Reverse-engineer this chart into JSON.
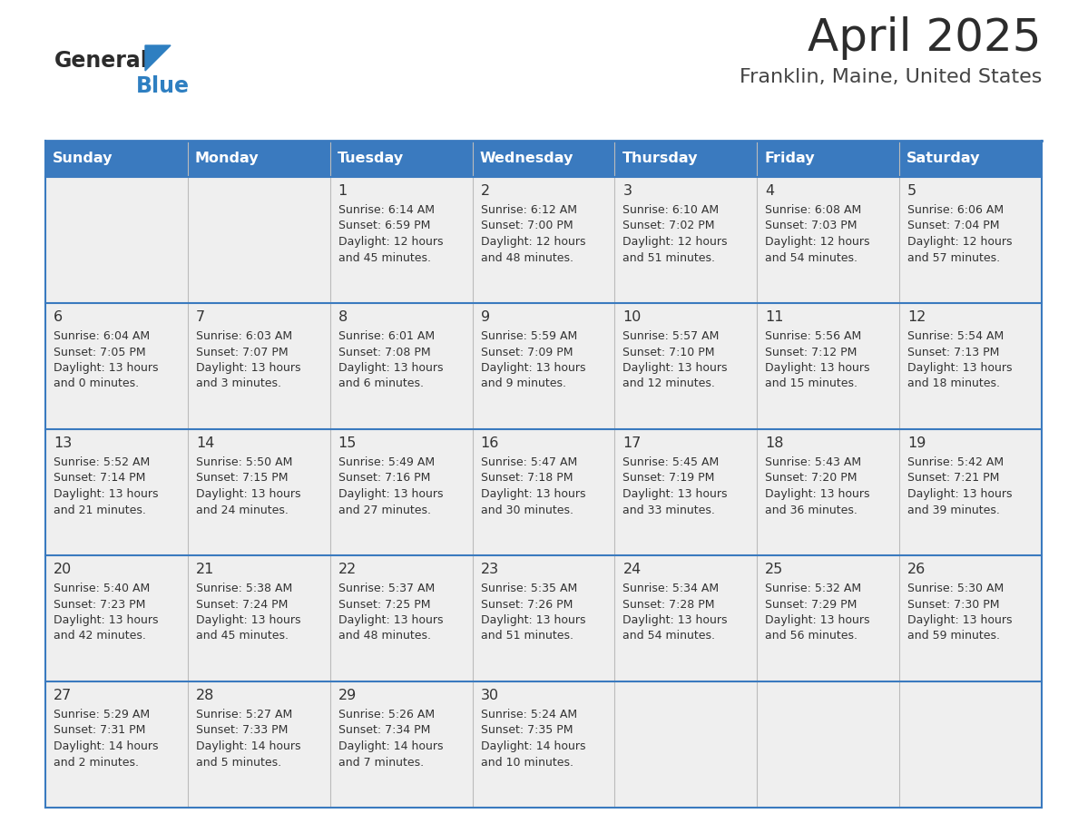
{
  "title": "April 2025",
  "subtitle": "Franklin, Maine, United States",
  "header_bg": "#3a7abf",
  "header_text_color": "#ffffff",
  "cell_bg_light": "#efefef",
  "text_color": "#333333",
  "line_color": "#3a7abf",
  "day_names": [
    "Sunday",
    "Monday",
    "Tuesday",
    "Wednesday",
    "Thursday",
    "Friday",
    "Saturday"
  ],
  "days": [
    {
      "day": 1,
      "col": 2,
      "row": 0,
      "sunrise": "6:14 AM",
      "sunset": "6:59 PM",
      "daylight_hours": 12,
      "daylight_minutes": 45
    },
    {
      "day": 2,
      "col": 3,
      "row": 0,
      "sunrise": "6:12 AM",
      "sunset": "7:00 PM",
      "daylight_hours": 12,
      "daylight_minutes": 48
    },
    {
      "day": 3,
      "col": 4,
      "row": 0,
      "sunrise": "6:10 AM",
      "sunset": "7:02 PM",
      "daylight_hours": 12,
      "daylight_minutes": 51
    },
    {
      "day": 4,
      "col": 5,
      "row": 0,
      "sunrise": "6:08 AM",
      "sunset": "7:03 PM",
      "daylight_hours": 12,
      "daylight_minutes": 54
    },
    {
      "day": 5,
      "col": 6,
      "row": 0,
      "sunrise": "6:06 AM",
      "sunset": "7:04 PM",
      "daylight_hours": 12,
      "daylight_minutes": 57
    },
    {
      "day": 6,
      "col": 0,
      "row": 1,
      "sunrise": "6:04 AM",
      "sunset": "7:05 PM",
      "daylight_hours": 13,
      "daylight_minutes": 0
    },
    {
      "day": 7,
      "col": 1,
      "row": 1,
      "sunrise": "6:03 AM",
      "sunset": "7:07 PM",
      "daylight_hours": 13,
      "daylight_minutes": 3
    },
    {
      "day": 8,
      "col": 2,
      "row": 1,
      "sunrise": "6:01 AM",
      "sunset": "7:08 PM",
      "daylight_hours": 13,
      "daylight_minutes": 6
    },
    {
      "day": 9,
      "col": 3,
      "row": 1,
      "sunrise": "5:59 AM",
      "sunset": "7:09 PM",
      "daylight_hours": 13,
      "daylight_minutes": 9
    },
    {
      "day": 10,
      "col": 4,
      "row": 1,
      "sunrise": "5:57 AM",
      "sunset": "7:10 PM",
      "daylight_hours": 13,
      "daylight_minutes": 12
    },
    {
      "day": 11,
      "col": 5,
      "row": 1,
      "sunrise": "5:56 AM",
      "sunset": "7:12 PM",
      "daylight_hours": 13,
      "daylight_minutes": 15
    },
    {
      "day": 12,
      "col": 6,
      "row": 1,
      "sunrise": "5:54 AM",
      "sunset": "7:13 PM",
      "daylight_hours": 13,
      "daylight_minutes": 18
    },
    {
      "day": 13,
      "col": 0,
      "row": 2,
      "sunrise": "5:52 AM",
      "sunset": "7:14 PM",
      "daylight_hours": 13,
      "daylight_minutes": 21
    },
    {
      "day": 14,
      "col": 1,
      "row": 2,
      "sunrise": "5:50 AM",
      "sunset": "7:15 PM",
      "daylight_hours": 13,
      "daylight_minutes": 24
    },
    {
      "day": 15,
      "col": 2,
      "row": 2,
      "sunrise": "5:49 AM",
      "sunset": "7:16 PM",
      "daylight_hours": 13,
      "daylight_minutes": 27
    },
    {
      "day": 16,
      "col": 3,
      "row": 2,
      "sunrise": "5:47 AM",
      "sunset": "7:18 PM",
      "daylight_hours": 13,
      "daylight_minutes": 30
    },
    {
      "day": 17,
      "col": 4,
      "row": 2,
      "sunrise": "5:45 AM",
      "sunset": "7:19 PM",
      "daylight_hours": 13,
      "daylight_minutes": 33
    },
    {
      "day": 18,
      "col": 5,
      "row": 2,
      "sunrise": "5:43 AM",
      "sunset": "7:20 PM",
      "daylight_hours": 13,
      "daylight_minutes": 36
    },
    {
      "day": 19,
      "col": 6,
      "row": 2,
      "sunrise": "5:42 AM",
      "sunset": "7:21 PM",
      "daylight_hours": 13,
      "daylight_minutes": 39
    },
    {
      "day": 20,
      "col": 0,
      "row": 3,
      "sunrise": "5:40 AM",
      "sunset": "7:23 PM",
      "daylight_hours": 13,
      "daylight_minutes": 42
    },
    {
      "day": 21,
      "col": 1,
      "row": 3,
      "sunrise": "5:38 AM",
      "sunset": "7:24 PM",
      "daylight_hours": 13,
      "daylight_minutes": 45
    },
    {
      "day": 22,
      "col": 2,
      "row": 3,
      "sunrise": "5:37 AM",
      "sunset": "7:25 PM",
      "daylight_hours": 13,
      "daylight_minutes": 48
    },
    {
      "day": 23,
      "col": 3,
      "row": 3,
      "sunrise": "5:35 AM",
      "sunset": "7:26 PM",
      "daylight_hours": 13,
      "daylight_minutes": 51
    },
    {
      "day": 24,
      "col": 4,
      "row": 3,
      "sunrise": "5:34 AM",
      "sunset": "7:28 PM",
      "daylight_hours": 13,
      "daylight_minutes": 54
    },
    {
      "day": 25,
      "col": 5,
      "row": 3,
      "sunrise": "5:32 AM",
      "sunset": "7:29 PM",
      "daylight_hours": 13,
      "daylight_minutes": 56
    },
    {
      "day": 26,
      "col": 6,
      "row": 3,
      "sunrise": "5:30 AM",
      "sunset": "7:30 PM",
      "daylight_hours": 13,
      "daylight_minutes": 59
    },
    {
      "day": 27,
      "col": 0,
      "row": 4,
      "sunrise": "5:29 AM",
      "sunset": "7:31 PM",
      "daylight_hours": 14,
      "daylight_minutes": 2
    },
    {
      "day": 28,
      "col": 1,
      "row": 4,
      "sunrise": "5:27 AM",
      "sunset": "7:33 PM",
      "daylight_hours": 14,
      "daylight_minutes": 5
    },
    {
      "day": 29,
      "col": 2,
      "row": 4,
      "sunrise": "5:26 AM",
      "sunset": "7:34 PM",
      "daylight_hours": 14,
      "daylight_minutes": 7
    },
    {
      "day": 30,
      "col": 3,
      "row": 4,
      "sunrise": "5:24 AM",
      "sunset": "7:35 PM",
      "daylight_hours": 14,
      "daylight_minutes": 10
    }
  ]
}
